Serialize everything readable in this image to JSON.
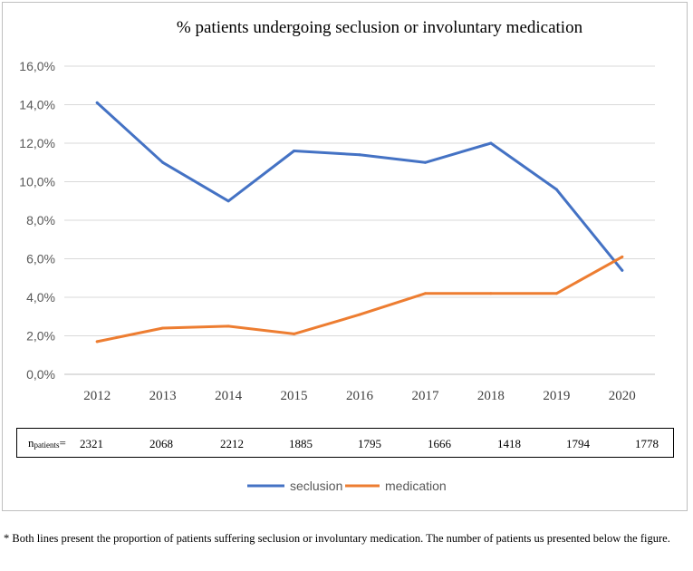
{
  "chart_data": {
    "type": "line",
    "title": "% patients undergoing seclusion or involuntary medication",
    "categories": [
      "2012",
      "2013",
      "2014",
      "2015",
      "2016",
      "2017",
      "2018",
      "2019",
      "2020"
    ],
    "ytick_labels": [
      "0,0%",
      "2,0%",
      "4,0%",
      "6,0%",
      "8,0%",
      "10,0%",
      "12,0%",
      "14,0%",
      "16,0%"
    ],
    "ylim": [
      0,
      16
    ],
    "series": [
      {
        "name": "seclusion",
        "color": "#4472c4",
        "values": [
          14.1,
          11.0,
          9.0,
          11.6,
          11.4,
          11.0,
          12.0,
          9.6,
          5.4
        ]
      },
      {
        "name": "medication",
        "color": "#ed7d31",
        "values": [
          1.7,
          2.4,
          2.5,
          2.1,
          3.1,
          4.2,
          4.2,
          4.2,
          6.1
        ]
      }
    ],
    "legend_position": "bottom"
  },
  "n_table": {
    "label_main": "n",
    "label_sub": "patients",
    "label_eq": "=",
    "values": [
      "2321",
      "2068",
      "2212",
      "1885",
      "1795",
      "1666",
      "1418",
      "1794",
      "1778"
    ]
  },
  "footnote": "* Both lines present the proportion of patients suffering seclusion or involuntary medication. The number of patients us presented below the figure."
}
